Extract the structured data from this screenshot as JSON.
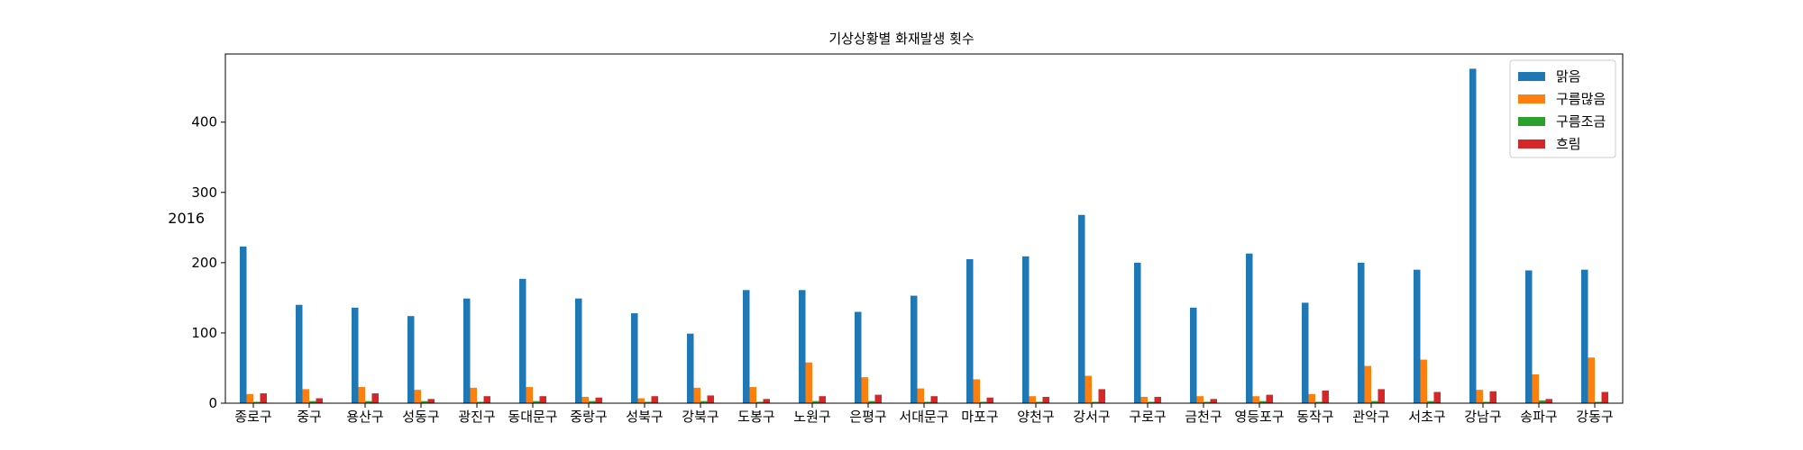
{
  "chart_data": {
    "type": "bar",
    "title": "기상상황별 화재발생 횟수",
    "xlabel": "",
    "ylabel": "2016",
    "ylim": [
      0,
      497
    ],
    "yticks": [
      0,
      100,
      200,
      300,
      400
    ],
    "grid": false,
    "legend_position": "top-right",
    "categories": [
      "종로구",
      "중구",
      "용산구",
      "성동구",
      "광진구",
      "동대문구",
      "중랑구",
      "성북구",
      "강북구",
      "도봉구",
      "노원구",
      "은평구",
      "서대문구",
      "마포구",
      "양천구",
      "강서구",
      "구로구",
      "금천구",
      "영등포구",
      "동작구",
      "관악구",
      "서초구",
      "강남구",
      "송파구",
      "강동구"
    ],
    "series": [
      {
        "name": "맑음",
        "color": "#1f77b4",
        "values": [
          223,
          140,
          136,
          124,
          149,
          177,
          149,
          128,
          99,
          161,
          161,
          130,
          153,
          205,
          209,
          268,
          200,
          136,
          213,
          143,
          200,
          190,
          476,
          189,
          190
        ]
      },
      {
        "name": "구름많음",
        "color": "#ff7f0e",
        "values": [
          13,
          20,
          23,
          19,
          22,
          23,
          9,
          7,
          22,
          23,
          58,
          37,
          21,
          34,
          10,
          39,
          9,
          10,
          10,
          13,
          53,
          62,
          19,
          41,
          65
        ]
      },
      {
        "name": "구름조금",
        "color": "#2ca02c",
        "values": [
          2,
          3,
          3,
          3,
          2,
          3,
          3,
          2,
          3,
          2,
          3,
          3,
          2,
          2,
          2,
          2,
          2,
          2,
          3,
          2,
          3,
          3,
          2,
          4,
          2
        ]
      },
      {
        "name": "흐림",
        "color": "#d62728",
        "values": [
          14,
          7,
          14,
          6,
          10,
          10,
          8,
          10,
          11,
          6,
          10,
          12,
          10,
          8,
          9,
          20,
          9,
          6,
          12,
          18,
          20,
          16,
          17,
          6,
          16
        ]
      }
    ]
  }
}
